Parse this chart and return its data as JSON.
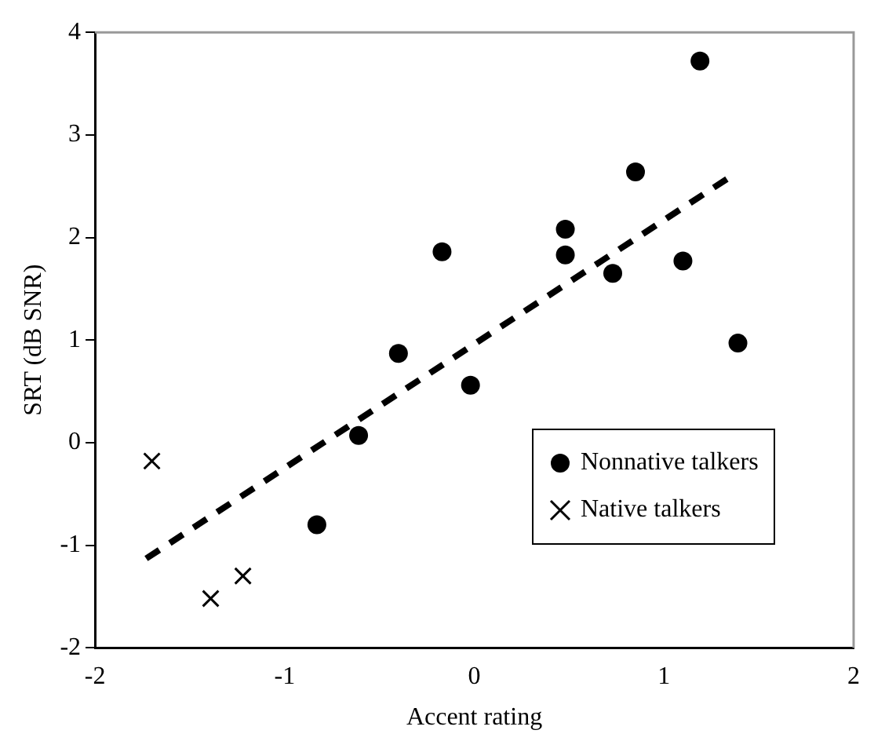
{
  "chart_data": {
    "type": "scatter",
    "xlabel": "Accent rating",
    "ylabel": "SRT (dB SNR)",
    "xlim": [
      -2,
      2
    ],
    "xticks": [
      -2,
      -1,
      0,
      1,
      2
    ],
    "ylim": [
      -2,
      4
    ],
    "yticks": [
      -2,
      -1,
      0,
      1,
      2,
      3,
      4
    ],
    "grid": false,
    "legend": "bottom right",
    "series": [
      {
        "name": "Nonnative talkers",
        "color": "#000000",
        "marker": "circle",
        "x": [
          1.19,
          0.85,
          0.48,
          0.48,
          0.73,
          1.1,
          1.39,
          -0.17,
          -0.4,
          -0.02,
          -0.61,
          -0.83
        ],
        "values": [
          3.72,
          2.64,
          2.08,
          1.83,
          1.65,
          1.77,
          0.97,
          1.86,
          0.87,
          0.56,
          0.07,
          -0.8
        ]
      },
      {
        "name": "Native talkers",
        "color": "#000000",
        "marker": "cross",
        "x": [
          -1.7,
          -1.39,
          -1.22
        ],
        "values": [
          -0.18,
          -1.52,
          -1.3
        ]
      },
      {
        "type": "line",
        "color": "#000000",
        "marker": "none",
        "line_style": "dashed",
        "x": [
          -1.73,
          1.34
        ],
        "values": [
          -1.13,
          2.58
        ]
      }
    ]
  }
}
